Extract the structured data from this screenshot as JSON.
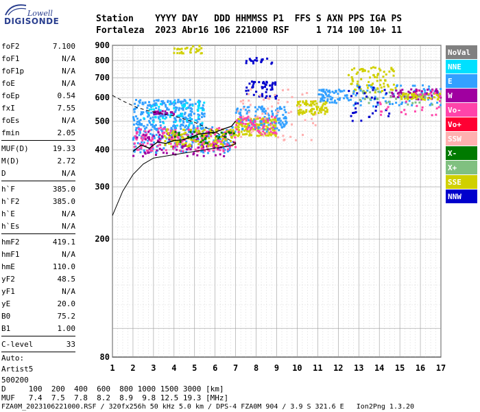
{
  "logo": {
    "top": "Lowell",
    "bottom": "DIGISONDE"
  },
  "header": {
    "line1": "Station    YYYY DAY   DDD HHMMSS P1  FFS S AXN PPS IGA PS",
    "line2": "Fortaleza  2023 Abr16 106 221000 RSF     1 714 100 10+ 11"
  },
  "params": {
    "g1": [
      {
        "label": "foF2",
        "value": "7.100"
      },
      {
        "label": "foF1",
        "value": "N/A"
      },
      {
        "label": "foF1p",
        "value": "N/A"
      },
      {
        "label": "foE",
        "value": "N/A"
      },
      {
        "label": "foEp",
        "value": "0.54"
      },
      {
        "label": "fxI",
        "value": "7.55"
      },
      {
        "label": "foEs",
        "value": "N/A"
      },
      {
        "label": "fmin",
        "value": "2.05"
      }
    ],
    "g2": [
      {
        "label": "MUF(D)",
        "value": "19.33"
      },
      {
        "label": "M(D)",
        "value": "2.72"
      },
      {
        "label": "D",
        "value": "N/A"
      }
    ],
    "g3": [
      {
        "label": "h`F",
        "value": "385.0"
      },
      {
        "label": "h`F2",
        "value": "385.0"
      },
      {
        "label": "h`E",
        "value": "N/A"
      },
      {
        "label": "h`Es",
        "value": "N/A"
      }
    ],
    "g4": [
      {
        "label": "hmF2",
        "value": "419.1"
      },
      {
        "label": "hmF1",
        "value": "N/A"
      },
      {
        "label": "hmE",
        "value": "110.0"
      },
      {
        "label": "yF2",
        "value": "48.5"
      },
      {
        "label": "yF1",
        "value": "N/A"
      },
      {
        "label": "yE",
        "value": "20.0"
      },
      {
        "label": "B0",
        "value": "75.2"
      },
      {
        "label": "B1",
        "value": "1.00"
      }
    ],
    "g5": [
      {
        "label": "C-level",
        "value": "33"
      }
    ],
    "auto": [
      "Auto:",
      "Artist5",
      "500200"
    ]
  },
  "footer": {
    "d_row": "D     100  200  400  600  800 1000 1500 3000 [km]",
    "muf_row": "MUF   7.4  7.5  7.8  8.2  8.9  9.8 12.5 19.3 [MHz]",
    "file_line": "FZA0M_2023106221000.RSF / 320fx256h 50 kHz 5.0 km / DPS-4 FZA0M 904 / 3.9 S 321.6 E   Ion2Png 1.3.20"
  },
  "chart_data": {
    "type": "scatter",
    "title": "",
    "xlabel": "",
    "ylabel": "",
    "xlim": [
      1,
      17
    ],
    "ylim": [
      80,
      900
    ],
    "x_ticks": [
      "1",
      "2",
      "3",
      "4",
      "5",
      "6",
      "7",
      "8",
      "9",
      "10",
      "11",
      "12",
      "13",
      "14",
      "15",
      "16",
      "17"
    ],
    "y_ticks": [
      "80",
      "200",
      "300",
      "400",
      "500",
      "600",
      "700",
      "800",
      "900"
    ],
    "y_scale": "log",
    "grid": true,
    "legend_position": "right",
    "legend": [
      {
        "name": "NoVal",
        "color": "#808080"
      },
      {
        "name": "NNE",
        "color": "#00e0ff"
      },
      {
        "name": "E",
        "color": "#33a0ff"
      },
      {
        "name": "W",
        "color": "#a000a0"
      },
      {
        "name": "Vo-",
        "color": "#ff44aa"
      },
      {
        "name": "Vo+",
        "color": "#ff0033"
      },
      {
        "name": "SSW",
        "color": "#ffb0b0"
      },
      {
        "name": "X-",
        "color": "#007a00"
      },
      {
        "name": "X+",
        "color": "#80c080"
      },
      {
        "name": "SSE",
        "color": "#d0d000"
      },
      {
        "name": "NNW",
        "color": "#0000cc"
      }
    ],
    "clusters": [
      {
        "name": "E",
        "x": [
          2.0,
          5.5
        ],
        "y": [
          470,
          590
        ],
        "n": 260
      },
      {
        "name": "NNE",
        "x": [
          2.5,
          5.5
        ],
        "y": [
          480,
          580
        ],
        "n": 60
      },
      {
        "name": "E",
        "x": [
          2.0,
          7.0
        ],
        "y": [
          390,
          480
        ],
        "n": 220
      },
      {
        "name": "Vo-",
        "x": [
          2.0,
          7.0
        ],
        "y": [
          395,
          475
        ],
        "n": 180
      },
      {
        "name": "W",
        "x": [
          2.0,
          6.5
        ],
        "y": [
          380,
          460
        ],
        "n": 80
      },
      {
        "name": "SSE",
        "x": [
          3.5,
          7.0
        ],
        "y": [
          410,
          470
        ],
        "n": 120
      },
      {
        "name": "X-",
        "x": [
          4.0,
          7.0
        ],
        "y": [
          420,
          465
        ],
        "n": 30
      },
      {
        "name": "W",
        "x": [
          3.0,
          4.0
        ],
        "y": [
          525,
          540
        ],
        "n": 30
      },
      {
        "name": "SSE",
        "x": [
          4.0,
          5.5
        ],
        "y": [
          840,
          900
        ],
        "n": 30
      },
      {
        "name": "SSE",
        "x": [
          7.0,
          9.0
        ],
        "y": [
          445,
          510
        ],
        "n": 160
      },
      {
        "name": "E",
        "x": [
          7.0,
          9.5
        ],
        "y": [
          460,
          560
        ],
        "n": 120
      },
      {
        "name": "Vo-",
        "x": [
          7.0,
          9.0
        ],
        "y": [
          450,
          520
        ],
        "n": 60
      },
      {
        "name": "NNW",
        "x": [
          7.5,
          9.0
        ],
        "y": [
          595,
          680
        ],
        "n": 50
      },
      {
        "name": "NNW",
        "x": [
          7.5,
          8.8
        ],
        "y": [
          780,
          820
        ],
        "n": 20
      },
      {
        "name": "SSW",
        "x": [
          7.0,
          11.0
        ],
        "y": [
          430,
          640
        ],
        "n": 60
      },
      {
        "name": "SSE",
        "x": [
          10.0,
          11.5
        ],
        "y": [
          525,
          585
        ],
        "n": 80
      },
      {
        "name": "E",
        "x": [
          11.0,
          12.5
        ],
        "y": [
          575,
          640
        ],
        "n": 60
      },
      {
        "name": "SSE",
        "x": [
          12.5,
          14.8
        ],
        "y": [
          620,
          760
        ],
        "n": 80
      },
      {
        "name": "E",
        "x": [
          12.5,
          17.0
        ],
        "y": [
          560,
          660
        ],
        "n": 80
      },
      {
        "name": "W",
        "x": [
          14.5,
          17.0
        ],
        "y": [
          590,
          640
        ],
        "n": 60
      },
      {
        "name": "SSE",
        "x": [
          15.0,
          17.0
        ],
        "y": [
          590,
          620
        ],
        "n": 50
      },
      {
        "name": "X+",
        "x": [
          13.0,
          17.0
        ],
        "y": [
          560,
          640
        ],
        "n": 30
      },
      {
        "name": "NNW",
        "x": [
          12.5,
          14.5
        ],
        "y": [
          500,
          650
        ],
        "n": 30
      },
      {
        "name": "Vo-",
        "x": [
          14.0,
          17.0
        ],
        "y": [
          520,
          640
        ],
        "n": 30
      }
    ],
    "trace_h_prime": {
      "x": [
        2.0,
        2.4,
        2.8,
        3.2,
        3.6,
        4.0,
        4.4,
        4.8,
        5.2,
        5.6,
        6.0,
        6.4,
        6.8,
        7.0
      ],
      "y": [
        395,
        415,
        405,
        425,
        420,
        430,
        432,
        440,
        452,
        455,
        458,
        470,
        480,
        500
      ]
    },
    "profile_true_height": {
      "x": [
        1.0,
        1.5,
        2.0,
        2.5,
        3.0,
        4.0,
        5.0,
        6.0,
        6.7,
        7.0,
        7.0
      ],
      "y": [
        240,
        290,
        330,
        358,
        375,
        385,
        395,
        405,
        412,
        418,
        425
      ]
    },
    "profile_topside": {
      "x": [
        1.0,
        1.6,
        2.2,
        2.8,
        3.4,
        4.0,
        5.0,
        6.0,
        7.0
      ],
      "y": [
        610,
        580,
        555,
        540,
        530,
        520,
        495,
        460,
        420
      ]
    }
  }
}
